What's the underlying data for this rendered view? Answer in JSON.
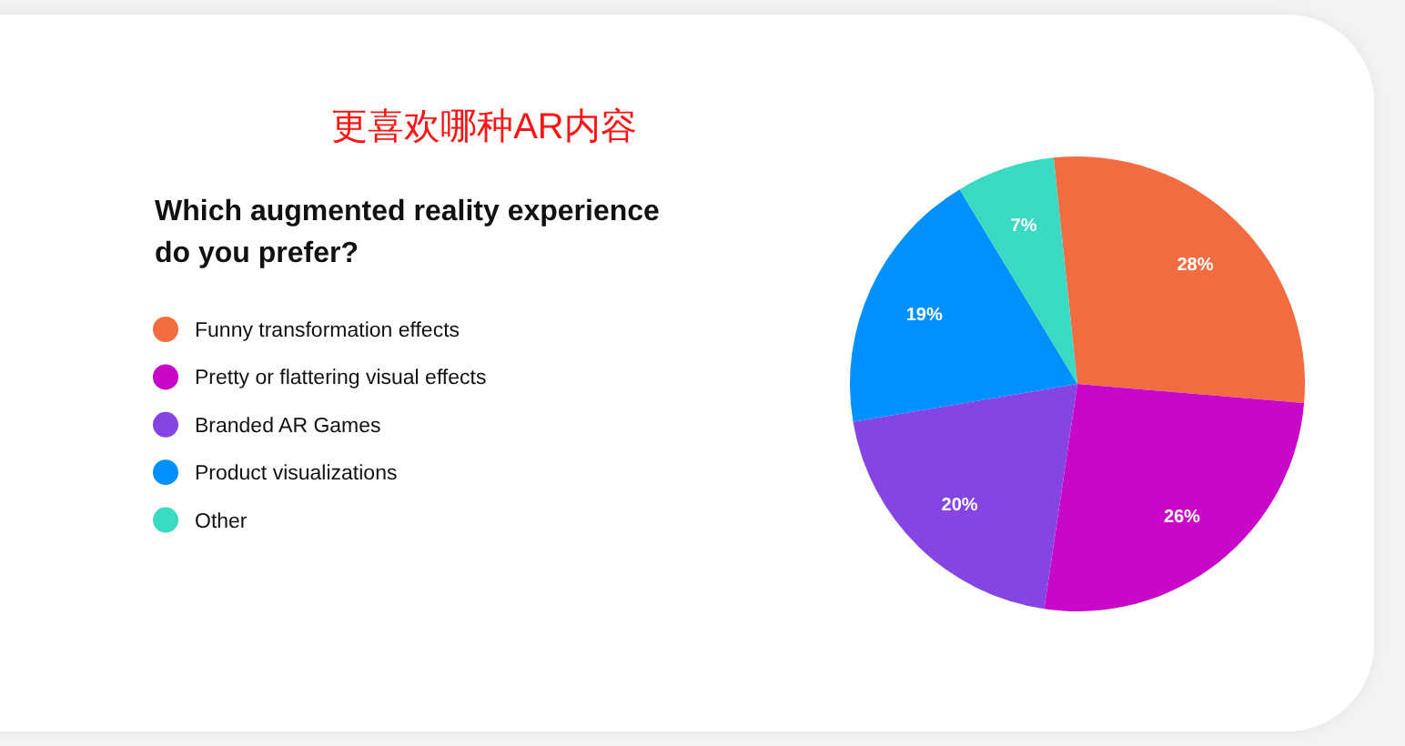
{
  "chart_data": {
    "type": "pie",
    "title": "更喜欢哪种AR内容",
    "subtitle": "Which augmented reality experience do you prefer?",
    "categories": [
      "Funny transformation effects",
      "Pretty or flattering visual effects",
      "Branded AR Games",
      "Product visualizations",
      "Other"
    ],
    "values": [
      28,
      26,
      20,
      19,
      7
    ],
    "colors": [
      "#f26b41",
      "#c808c8",
      "#8544e3",
      "#0091ff",
      "#3ad9c1"
    ],
    "value_labels": [
      "28%",
      "26%",
      "20%",
      "19%",
      "7%"
    ],
    "legend": "left"
  }
}
